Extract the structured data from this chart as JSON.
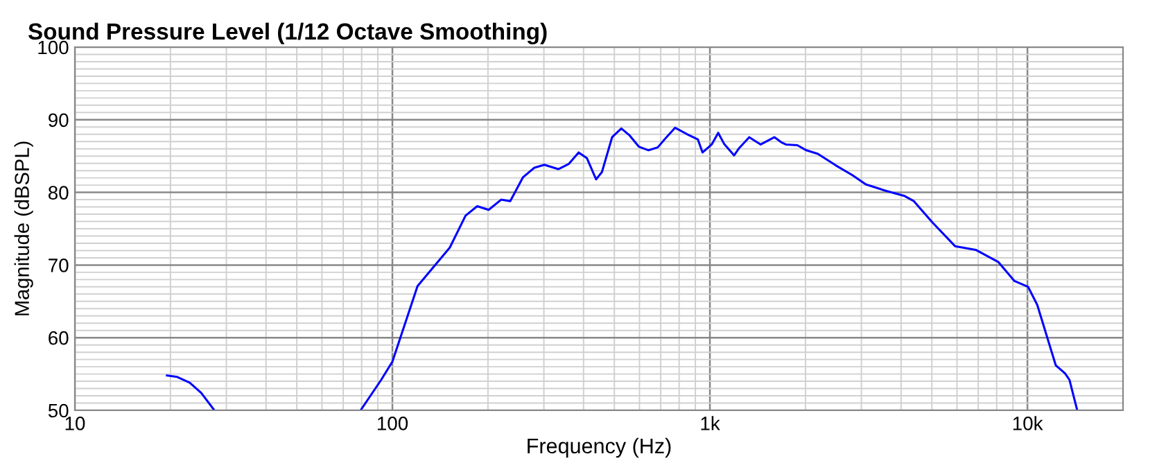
{
  "chart_data": {
    "type": "line",
    "title": "Sound Pressure Level (1/12 Octave Smoothing)",
    "xlabel": "Frequency (Hz)",
    "ylabel": "Magnitude (dBSPL)",
    "log": "x",
    "grid": true,
    "legend": false,
    "marker": "none",
    "line_style": "solid",
    "xlim": [
      10,
      20000
    ],
    "ylim": [
      50,
      100
    ],
    "xticks": [
      {
        "value": 10,
        "label": "10"
      },
      {
        "value": 100,
        "label": "100"
      },
      {
        "value": 1000,
        "label": "1k"
      },
      {
        "value": 10000,
        "label": "10k"
      }
    ],
    "yticks": [
      50,
      60,
      70,
      80,
      90,
      100
    ],
    "series": [
      {
        "color": "#0000ff",
        "x": [
          19.5,
          21,
          23,
          25,
          27.5,
          28,
          79.4,
          92.2,
          100,
          120,
          151.6,
          170,
          185,
          201,
          220,
          235,
          258,
          280,
          301,
          333,
          359,
          386,
          410,
          438,
          457,
          492,
          526,
          557,
          597,
          641,
          685,
          720,
          777,
          849,
          916,
          948,
          1013,
          1062,
          1108,
          1192,
          1236,
          1330,
          1445,
          1597,
          1679,
          1734,
          1885,
          2012,
          2188,
          2496,
          2805,
          3097,
          3594,
          4105,
          4388,
          5011,
          5916,
          6869,
          8106,
          9103,
          10050,
          10740,
          12280,
          13130,
          13560,
          14350
        ],
        "values": [
          54.8,
          54.6,
          53.8,
          52.4,
          50.0,
          null,
          50.0,
          54.2,
          56.7,
          67.1,
          72.4,
          76.8,
          78.1,
          77.6,
          79.0,
          78.8,
          82.1,
          83.4,
          83.8,
          83.2,
          83.9,
          85.5,
          84.7,
          81.8,
          82.8,
          87.6,
          88.8,
          87.9,
          86.3,
          85.8,
          86.2,
          87.3,
          88.9,
          88.0,
          87.3,
          85.5,
          86.6,
          88.2,
          86.7,
          85.1,
          86.1,
          87.6,
          86.6,
          87.6,
          86.9,
          86.6,
          86.5,
          85.8,
          85.3,
          83.7,
          82.4,
          81.1,
          80.2,
          79.5,
          78.8,
          75.9,
          72.6,
          72.1,
          70.4,
          67.8,
          67.0,
          64.5,
          56.2,
          55.1,
          54.2,
          50.0
        ]
      }
    ]
  }
}
